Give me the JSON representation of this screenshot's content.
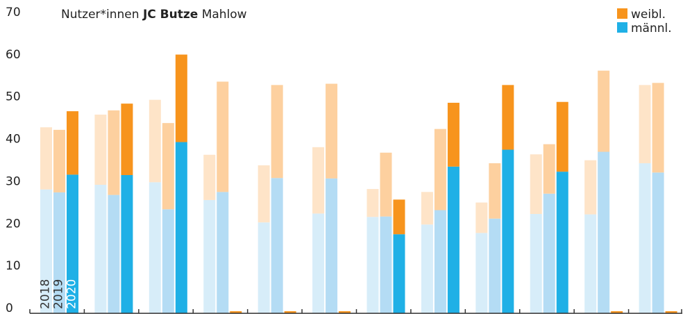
{
  "chart_data": {
    "type": "grouped-stacked-bar",
    "title_parts": [
      "Nutzer*innen",
      "JC Butze",
      "Mahlow"
    ],
    "categories": [
      null,
      null,
      null,
      null,
      null,
      null,
      null,
      null,
      null,
      null,
      null,
      null
    ],
    "legend": [
      {
        "name": "weibl.",
        "color": "#f7941d"
      },
      {
        "name": "männl.",
        "color": "#1fb0e6"
      }
    ],
    "years": [
      {
        "label": "2018",
        "male_color": "#d7edf9",
        "female_color": "#fee4c8",
        "male": [
          29.3,
          30.4,
          31,
          26.8,
          21.5,
          23.6,
          22.8,
          21,
          19,
          23.5,
          23.4,
          35.5
        ],
        "female": [
          14.7,
          16.6,
          19.5,
          10.7,
          13.5,
          15.7,
          6.6,
          7.7,
          7.2,
          14.1,
          12.8,
          18.5
        ]
      },
      {
        "label": "2019",
        "male_color": "#b4dcf4",
        "female_color": "#fdd09f",
        "male": [
          28.6,
          28,
          24.6,
          28.7,
          32,
          31.9,
          22.9,
          24.4,
          22.4,
          28.3,
          38.2,
          33.3
        ],
        "female": [
          14.8,
          20,
          20.4,
          26.1,
          22,
          22.4,
          15.1,
          19.2,
          13.1,
          11.7,
          19.2,
          21.2
        ]
      },
      {
        "label": "2020",
        "male_color": "#1fb0e6",
        "female_color": "#f7941d",
        "male": [
          32.8,
          32.7,
          40.5,
          0,
          0,
          0,
          18.7,
          34.7,
          38.7,
          33.5,
          0,
          0
        ],
        "female": [
          15,
          16.9,
          20.7,
          0,
          0,
          0,
          8.2,
          15.1,
          15.3,
          16.5,
          0,
          0
        ]
      }
    ],
    "ylim": [
      0,
      70
    ],
    "yticks": [
      0,
      10,
      20,
      30,
      40,
      50,
      60,
      70
    ]
  }
}
